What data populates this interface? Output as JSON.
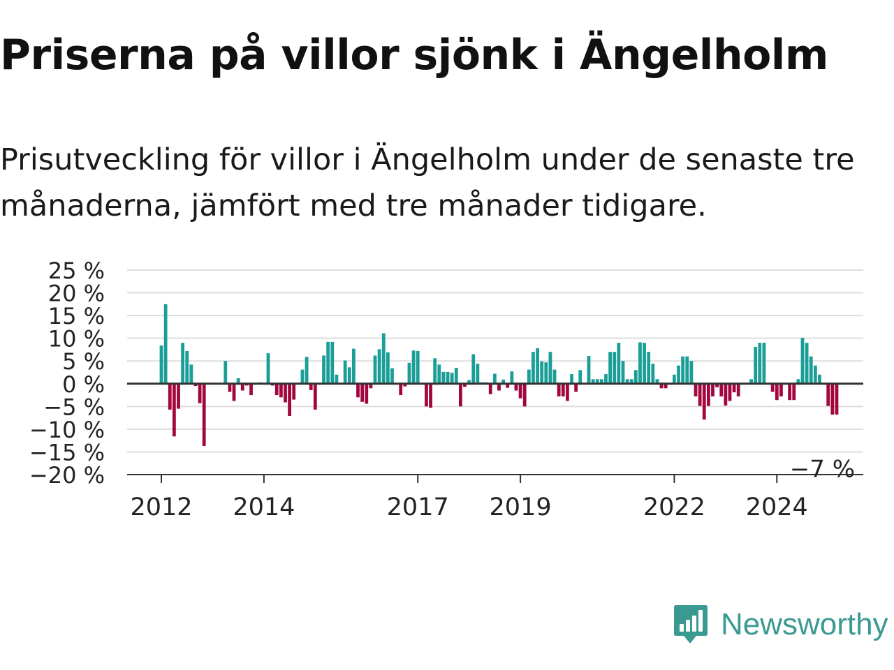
{
  "header": {
    "title": "Priserna på villor sjönk i Ängelholm",
    "subtitle": "Prisutveckling för villor i Ängelholm under de senaste tre månaderna, jämfört med tre månader tidigare."
  },
  "brand": {
    "name": "Newsworthy",
    "icon": "newsworthy-logo-icon",
    "color": "#3a9a92"
  },
  "chart_data": {
    "type": "bar",
    "title": "Priserna på villor sjönk i Ängelholm",
    "subtitle": "Prisutveckling för villor i Ängelholm under de senaste tre månaderna, jämfört med tre månader tidigare.",
    "xlabel": "",
    "ylabel": "",
    "x_start": "2012-01",
    "frequency": "monthly",
    "x_ticks": [
      "2012",
      "2014",
      "2017",
      "2019",
      "2022",
      "2024"
    ],
    "y_ticks": [
      "25 %",
      "20 %",
      "15 %",
      "10 %",
      "5 %",
      "0 %",
      "−5 %",
      "−10 %",
      "−15 %",
      "−20 %"
    ],
    "ylim": [
      -20,
      25
    ],
    "grid": true,
    "colors": {
      "positive": "#1a9e97",
      "negative": "#a3063f",
      "grid": "#dddddd",
      "axis": "#333333"
    },
    "annotation": {
      "text": "−7 %",
      "value": -7
    },
    "values": [
      8.4,
      17.5,
      -5.7,
      -11.6,
      -5.5,
      9.0,
      7.2,
      4.2,
      -0.5,
      -4.3,
      -13.7,
      0,
      0,
      0,
      0,
      5.0,
      -1.8,
      -3.8,
      1.2,
      -1.5,
      -0.4,
      -2.5,
      0,
      0.3,
      0,
      6.7,
      -0.4,
      -2.5,
      -3.0,
      -4.1,
      -7.1,
      -3.5,
      0,
      3.1,
      5.9,
      -1.4,
      -5.7,
      0,
      6.2,
      9.2,
      9.2,
      2.0,
      0,
      5.1,
      3.6,
      7.7,
      -3.0,
      -4.0,
      -4.4,
      -1.0,
      6.2,
      7.6,
      11.1,
      6.9,
      3.4,
      0,
      -2.5,
      -0.6,
      4.6,
      7.3,
      7.2,
      0,
      -5.0,
      -5.3,
      5.6,
      4.2,
      2.6,
      2.6,
      2.4,
      3.5,
      -5.0,
      -0.7,
      0.8,
      6.5,
      4.4,
      0.3,
      0.3,
      -2.3,
      2.2,
      -1.5,
      0.9,
      -0.9,
      2.7,
      -1.5,
      -3.2,
      -5.0,
      3.1,
      7.0,
      7.8,
      4.9,
      4.7,
      7.0,
      3.1,
      -2.8,
      -2.8,
      -3.8,
      2.1,
      -1.8,
      3.0,
      0,
      6.1,
      1.0,
      1.0,
      1.0,
      2.1,
      7.0,
      7.0,
      9.0,
      5.0,
      1.0,
      1.0,
      3.0,
      9.1,
      9.0,
      7.0,
      4.4,
      1.0,
      -1.0,
      -1.0,
      0,
      2.0,
      4.0,
      6.0,
      6.0,
      5.0,
      -2.8,
      -4.9,
      -7.9,
      -4.9,
      -2.8,
      -0.8,
      -2.8,
      -4.8,
      -3.8,
      -1.9,
      -2.8,
      0,
      0,
      1.0,
      8.1,
      9.0,
      9.0,
      0,
      -1.8,
      -3.6,
      -2.8,
      0,
      -3.6,
      -3.6,
      1.0,
      10.1,
      9.0,
      6.0,
      4.0,
      2.0,
      0,
      -4.9,
      -6.8,
      -6.8
    ]
  }
}
